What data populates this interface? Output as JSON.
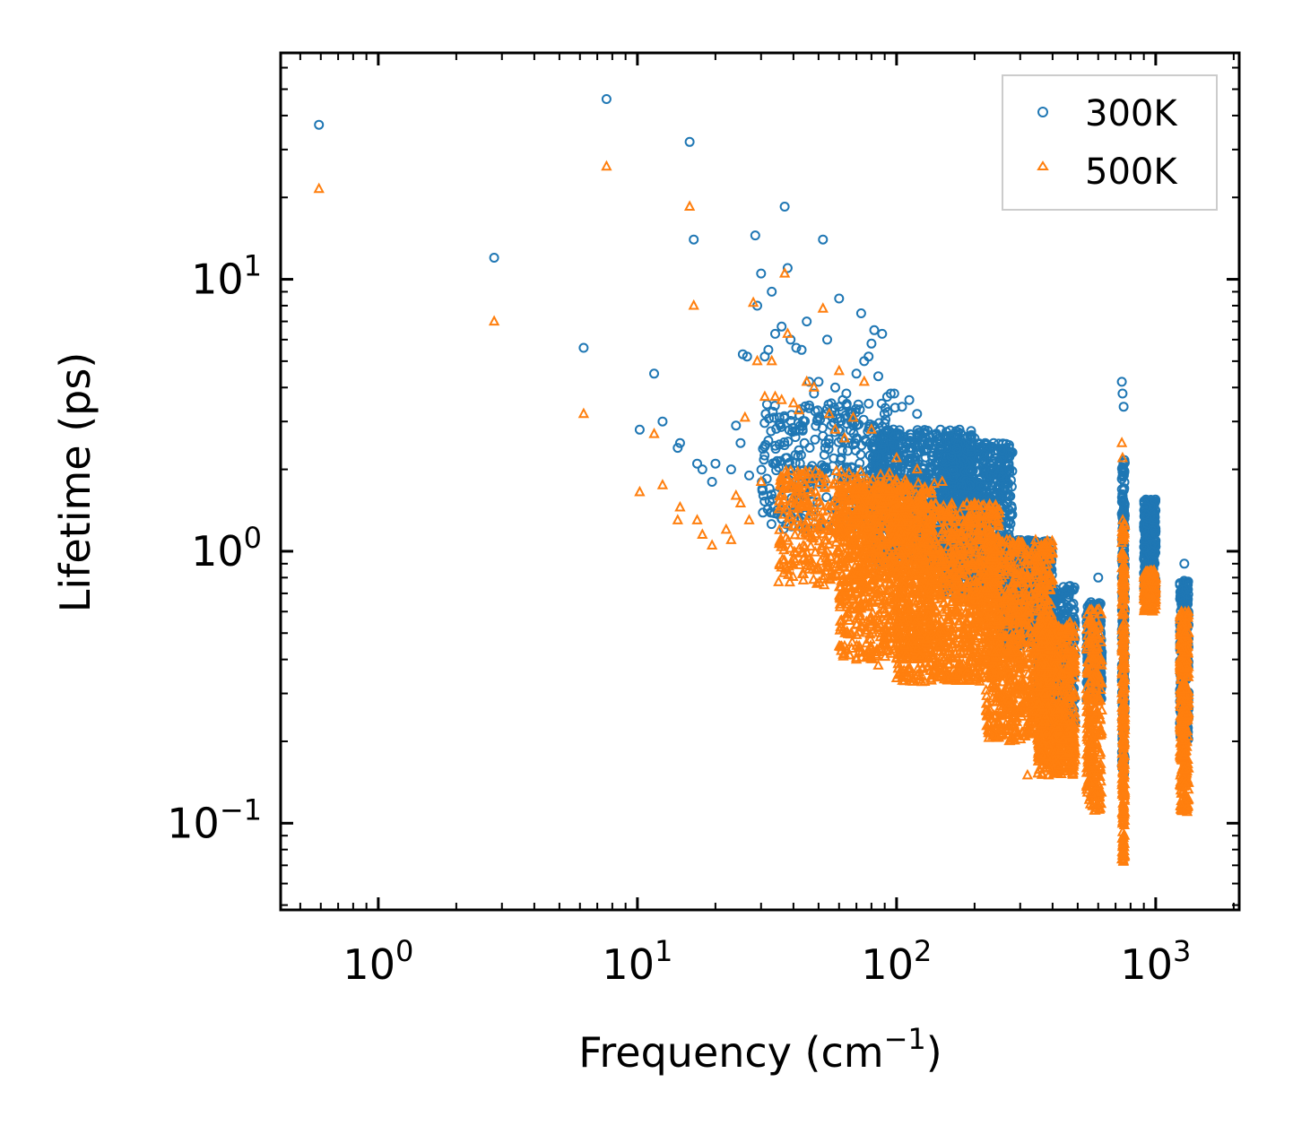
{
  "chart_data": {
    "type": "scatter",
    "xlabel": "Frequency (cm",
    "xlabel_exp": "−1",
    "xlabel_suffix": ")",
    "ylabel": "Lifetime (ps)",
    "xscale": "log",
    "yscale": "log",
    "xlim": [
      0.42,
      2100
    ],
    "ylim": [
      0.048,
      68
    ],
    "legend_position": "top-right",
    "x_ticks": [
      {
        "base": "10",
        "exp": "0",
        "value": 1
      },
      {
        "base": "10",
        "exp": "1",
        "value": 10
      },
      {
        "base": "10",
        "exp": "2",
        "value": 100
      },
      {
        "base": "10",
        "exp": "3",
        "value": 1000
      }
    ],
    "y_ticks": [
      {
        "base": "10",
        "exp": "−1",
        "value": 0.1
      },
      {
        "base": "10",
        "exp": "0",
        "value": 1
      },
      {
        "base": "10",
        "exp": "1",
        "value": 10
      }
    ],
    "series": [
      {
        "name": "300K",
        "marker": "circle",
        "color": "#1f77b4",
        "points": [
          [
            0.59,
            37
          ],
          [
            2.8,
            12
          ],
          [
            6.2,
            5.6
          ],
          [
            7.6,
            46
          ],
          [
            10.2,
            2.8
          ],
          [
            11.6,
            4.5
          ],
          [
            12.5,
            3.0
          ],
          [
            14.3,
            2.4
          ],
          [
            14.6,
            2.5
          ],
          [
            15.9,
            32
          ],
          [
            16.5,
            14
          ],
          [
            17,
            2.1
          ],
          [
            17.8,
            2.0
          ],
          [
            19.4,
            1.8
          ],
          [
            20,
            2.1
          ],
          [
            23,
            2.0
          ],
          [
            24,
            2.9
          ],
          [
            25,
            2.5
          ],
          [
            25.5,
            5.3
          ],
          [
            26.5,
            5.2
          ],
          [
            27,
            1.9
          ],
          [
            28.5,
            14.5
          ],
          [
            29,
            8.0
          ],
          [
            30,
            10.5
          ],
          [
            31,
            5.2
          ],
          [
            32,
            5.5
          ],
          [
            33,
            9.0
          ],
          [
            34,
            6.3
          ],
          [
            36,
            6.7
          ],
          [
            37,
            18.5
          ],
          [
            38,
            11
          ],
          [
            39,
            6.0
          ],
          [
            41,
            5.6
          ],
          [
            43,
            5.5
          ],
          [
            45,
            7.0
          ],
          [
            46,
            4.2
          ],
          [
            48,
            3.8
          ],
          [
            50,
            4.2
          ],
          [
            52,
            14
          ],
          [
            54,
            6.0
          ],
          [
            56,
            3.5
          ],
          [
            58,
            4.0
          ],
          [
            60,
            8.5
          ],
          [
            62,
            3.6
          ],
          [
            64,
            3.8
          ],
          [
            67,
            3.2
          ],
          [
            70,
            4.5
          ],
          [
            73,
            7.5
          ],
          [
            75,
            5.0
          ],
          [
            78,
            5.2
          ],
          [
            80,
            5.8
          ],
          [
            82,
            6.5
          ],
          [
            85,
            4.4
          ],
          [
            88,
            6.3
          ],
          [
            92,
            3.7
          ],
          [
            95,
            3.8
          ],
          [
            98,
            3.8
          ],
          [
            105,
            3.4
          ],
          [
            112,
            3.6
          ],
          [
            120,
            3.2
          ],
          [
            130,
            2.6
          ],
          [
            150,
            2.4
          ],
          [
            175,
            2.8
          ],
          [
            200,
            2.6
          ],
          [
            220,
            2.5
          ],
          [
            255,
            2.0
          ],
          [
            600,
            0.8
          ],
          [
            740,
            4.2
          ],
          [
            745,
            3.8
          ],
          [
            752,
            3.4
          ],
          [
            1290,
            0.9
          ]
        ],
        "clusters": [
          {
            "x_range": [
              30,
              100
            ],
            "y_range": [
              1.2,
              3.5
            ],
            "count": 380
          },
          {
            "x_range": [
              80,
              200
            ],
            "y_range": [
              0.9,
              2.8
            ],
            "count": 900
          },
          {
            "x_range": [
              150,
              280
            ],
            "y_range": [
              0.7,
              2.5
            ],
            "count": 900
          },
          {
            "x_range": [
              250,
              400
            ],
            "y_range": [
              0.45,
              1.1
            ],
            "count": 700
          },
          {
            "x_range": [
              350,
              490
            ],
            "y_range": [
              0.22,
              0.75
            ],
            "count": 520
          },
          {
            "x_range": [
              540,
              620
            ],
            "y_range": [
              0.28,
              0.65
            ],
            "count": 260
          },
          {
            "x_range": [
              740,
              760
            ],
            "y_range": [
              0.15,
              2.2
            ],
            "count": 240
          },
          {
            "x_range": [
              900,
              1000
            ],
            "y_range": [
              0.65,
              1.55
            ],
            "count": 300
          },
          {
            "x_range": [
              1240,
              1340
            ],
            "y_range": [
              0.2,
              0.78
            ],
            "count": 300
          }
        ]
      },
      {
        "name": "500K",
        "marker": "triangle",
        "color": "#ff7f0e",
        "points": [
          [
            0.59,
            21.5
          ],
          [
            2.8,
            7.0
          ],
          [
            6.2,
            3.2
          ],
          [
            7.6,
            26
          ],
          [
            10.2,
            1.65
          ],
          [
            11.6,
            2.7
          ],
          [
            12.5,
            1.75
          ],
          [
            14.3,
            1.3
          ],
          [
            14.6,
            1.45
          ],
          [
            15.9,
            18.5
          ],
          [
            16.5,
            8.0
          ],
          [
            17,
            1.3
          ],
          [
            17.8,
            1.15
          ],
          [
            19.4,
            1.05
          ],
          [
            22,
            1.2
          ],
          [
            23,
            1.1
          ],
          [
            24,
            1.6
          ],
          [
            25,
            1.5
          ],
          [
            26,
            3.1
          ],
          [
            27,
            1.3
          ],
          [
            28,
            8.2
          ],
          [
            29,
            5.0
          ],
          [
            30,
            1.8
          ],
          [
            31,
            3.7
          ],
          [
            33,
            5.0
          ],
          [
            34,
            3.7
          ],
          [
            36,
            3.6
          ],
          [
            37,
            10.5
          ],
          [
            38,
            6.3
          ],
          [
            40,
            3.5
          ],
          [
            42,
            3.3
          ],
          [
            45,
            4.2
          ],
          [
            48,
            4.0
          ],
          [
            52,
            7.8
          ],
          [
            55,
            3.2
          ],
          [
            58,
            2.8
          ],
          [
            60,
            4.6
          ],
          [
            63,
            2.6
          ],
          [
            68,
            3.1
          ],
          [
            70,
            0.4
          ],
          [
            75,
            4.2
          ],
          [
            80,
            2.8
          ],
          [
            85,
            0.38
          ],
          [
            100,
            2.2
          ],
          [
            120,
            2.0
          ],
          [
            150,
            1.8
          ],
          [
            200,
            1.5
          ],
          [
            320,
            0.15
          ],
          [
            380,
            0.16
          ],
          [
            740,
            2.5
          ],
          [
            745,
            2.2
          ],
          [
            1290,
            0.5
          ]
        ],
        "clusters": [
          {
            "x_range": [
              35,
              110
            ],
            "y_range": [
              0.75,
              2.0
            ],
            "count": 480
          },
          {
            "x_range": [
              60,
              140
            ],
            "y_range": [
              0.4,
              1.8
            ],
            "count": 800
          },
          {
            "x_range": [
              100,
              250
            ],
            "y_range": [
              0.33,
              1.5
            ],
            "count": 1100
          },
          {
            "x_range": [
              220,
              400
            ],
            "y_range": [
              0.2,
              1.1
            ],
            "count": 900
          },
          {
            "x_range": [
              350,
              490
            ],
            "y_range": [
              0.15,
              0.55
            ],
            "count": 600
          },
          {
            "x_range": [
              540,
              620
            ],
            "y_range": [
              0.11,
              0.62
            ],
            "count": 280
          },
          {
            "x_range": [
              740,
              760
            ],
            "y_range": [
              0.07,
              1.3
            ],
            "count": 300
          },
          {
            "x_range": [
              900,
              1000
            ],
            "y_range": [
              0.6,
              0.85
            ],
            "count": 200
          },
          {
            "x_range": [
              1240,
              1340
            ],
            "y_range": [
              0.11,
              0.6
            ],
            "count": 350
          }
        ]
      }
    ]
  }
}
